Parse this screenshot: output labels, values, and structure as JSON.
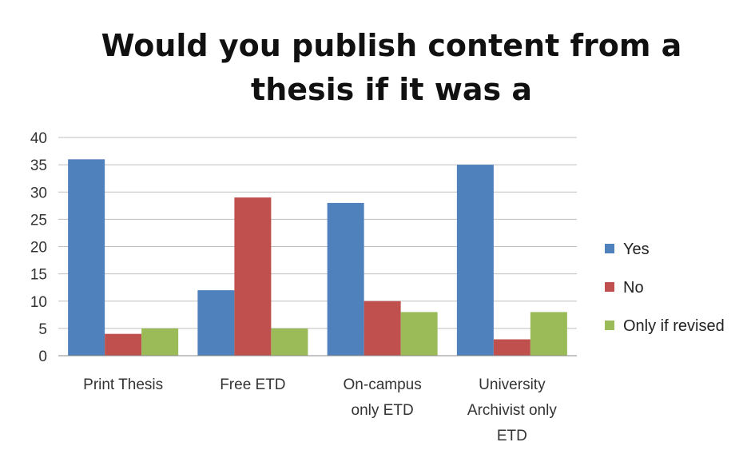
{
  "chart_data": {
    "type": "bar",
    "title": [
      "Would you publish content from a",
      "thesis if it was a"
    ],
    "categories": [
      [
        "Print Thesis"
      ],
      [
        "Free ETD"
      ],
      [
        "On-campus",
        "only ETD"
      ],
      [
        "University",
        "Archivist only",
        "ETD"
      ]
    ],
    "series": [
      {
        "name": "Yes",
        "color": "#4F81BD",
        "values": [
          36,
          12,
          28,
          35
        ]
      },
      {
        "name": "No",
        "color": "#C0504D",
        "values": [
          4,
          29,
          10,
          3
        ]
      },
      {
        "name": "Only if revised",
        "color": "#9BBB59",
        "values": [
          5,
          5,
          8,
          8
        ]
      }
    ],
    "ylim": [
      0,
      40
    ],
    "yticks": [
      0,
      5,
      10,
      15,
      20,
      25,
      30,
      35,
      40
    ],
    "grid": true,
    "legend_position": "right"
  }
}
